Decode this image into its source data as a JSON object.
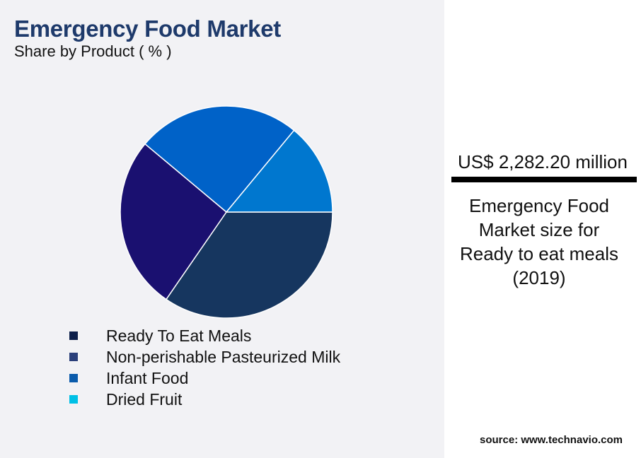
{
  "title": "Emergency Food Market",
  "subtitle": "Share by Product ( % )",
  "chart_data": {
    "type": "pie",
    "title": "Emergency Food Market",
    "subtitle": "Share by Product ( % )",
    "legend_position": "bottom",
    "categories": [
      "Ready To Eat Meals",
      "Non-perishable Pasteurized Milk",
      "Infant Food",
      "Dried Fruit"
    ],
    "values": [
      34.6,
      26.5,
      24.9,
      14.0
    ],
    "slice_colors": [
      "#16365f",
      "#1a1070",
      "#0062c8",
      "#0077cf"
    ],
    "legend_colors": [
      "#0d1f4a",
      "#2a3f7a",
      "#0b5bab",
      "#00c0e6"
    ]
  },
  "panel": {
    "value": "US$ 2,282.20 million",
    "caption_lines": [
      "Emergency Food",
      "Market size for",
      "Ready to eat meals",
      "(2019)"
    ]
  },
  "source": "source: www.technavio.com"
}
